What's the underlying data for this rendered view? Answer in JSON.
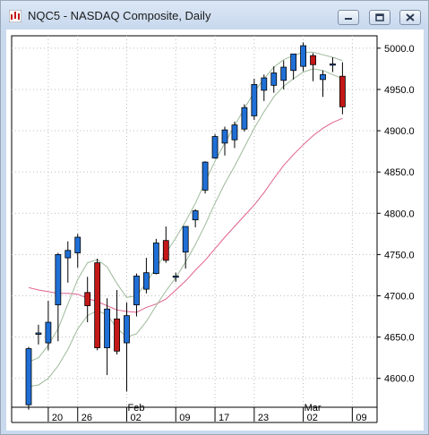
{
  "window": {
    "title": "NQC5 - NASDAQ Composite, Daily",
    "icon": "chart-app-icon",
    "buttons": [
      "minimize",
      "restore",
      "close"
    ]
  },
  "chart_data": {
    "type": "candlestick",
    "title": "NQC5 - NASDAQ Composite, Daily",
    "ylim": [
      4565,
      5015
    ],
    "y_ticks": [
      4600,
      4650,
      4700,
      4750,
      4800,
      4850,
      4900,
      4950,
      5000
    ],
    "y_tick_labels": [
      "4600.0",
      "4650.0",
      "4700.0",
      "4750.0",
      "4800.0",
      "4850.0",
      "4900.0",
      "4950.0",
      "5000.0"
    ],
    "x_ticks": [
      {
        "label": "20",
        "index": 2
      },
      {
        "label": "26",
        "index": 5
      },
      {
        "label": "02",
        "index": 10
      },
      {
        "label": "09",
        "index": 15
      },
      {
        "label": "17",
        "index": 19
      },
      {
        "label": "23",
        "index": 23
      },
      {
        "label": "02",
        "index": 28
      },
      {
        "label": "09",
        "index": 33
      }
    ],
    "month_labels": [
      {
        "label": "Feb",
        "index": 10
      },
      {
        "label": "Mar",
        "index": 28
      }
    ],
    "grid": true,
    "candles": [
      {
        "o": 4568,
        "h": 4638,
        "l": 4562,
        "c": 4636
      },
      {
        "o": 4655,
        "h": 4665,
        "l": 4641,
        "c": 4655
      },
      {
        "o": 4643,
        "h": 4694,
        "l": 4634,
        "c": 4668
      },
      {
        "o": 4689,
        "h": 4752,
        "l": 4645,
        "c": 4750
      },
      {
        "o": 4746,
        "h": 4766,
        "l": 4716,
        "c": 4755
      },
      {
        "o": 4752,
        "h": 4775,
        "l": 4734,
        "c": 4771
      },
      {
        "o": 4704,
        "h": 4723,
        "l": 4668,
        "c": 4688
      },
      {
        "o": 4740,
        "h": 4745,
        "l": 4634,
        "c": 4637
      },
      {
        "o": 4637,
        "h": 4697,
        "l": 4604,
        "c": 4684
      },
      {
        "o": 4672,
        "h": 4707,
        "l": 4629,
        "c": 4633
      },
      {
        "o": 4643,
        "h": 4692,
        "l": 4584,
        "c": 4676
      },
      {
        "o": 4689,
        "h": 4727,
        "l": 4675,
        "c": 4724
      },
      {
        "o": 4708,
        "h": 4746,
        "l": 4703,
        "c": 4728
      },
      {
        "o": 4727,
        "h": 4769,
        "l": 4726,
        "c": 4764
      },
      {
        "o": 4767,
        "h": 4784,
        "l": 4740,
        "c": 4743
      },
      {
        "o": 4723,
        "h": 4728,
        "l": 4717,
        "c": 4724
      },
      {
        "o": 4753,
        "h": 4784,
        "l": 4733,
        "c": 4784
      },
      {
        "o": 4792,
        "h": 4805,
        "l": 4783,
        "c": 4803
      },
      {
        "o": 4828,
        "h": 4863,
        "l": 4824,
        "c": 4862
      },
      {
        "o": 4867,
        "h": 4896,
        "l": 4866,
        "c": 4893
      },
      {
        "o": 4885,
        "h": 4905,
        "l": 4870,
        "c": 4901
      },
      {
        "o": 4889,
        "h": 4911,
        "l": 4879,
        "c": 4907
      },
      {
        "o": 4902,
        "h": 4932,
        "l": 4899,
        "c": 4928
      },
      {
        "o": 4918,
        "h": 4963,
        "l": 4913,
        "c": 4956
      },
      {
        "o": 4949,
        "h": 4968,
        "l": 4936,
        "c": 4964
      },
      {
        "o": 4955,
        "h": 4978,
        "l": 4946,
        "c": 4970
      },
      {
        "o": 4961,
        "h": 4985,
        "l": 4950,
        "c": 4977
      },
      {
        "o": 4973,
        "h": 4993,
        "l": 4962,
        "c": 4993
      },
      {
        "o": 4978,
        "h": 5007,
        "l": 4972,
        "c": 5003
      },
      {
        "o": 4991,
        "h": 4994,
        "l": 4960,
        "c": 4980
      },
      {
        "o": 4962,
        "h": 4973,
        "l": 4941,
        "c": 4968
      },
      {
        "o": 4981,
        "h": 4989,
        "l": 4971,
        "c": 4981
      },
      {
        "o": 4966,
        "h": 4983,
        "l": 4920,
        "c": 4929
      }
    ],
    "overlays": [
      {
        "color": "#e0608c",
        "values": [
          4710,
          4707,
          4705,
          4703,
          4703,
          4702,
          4697,
          4693,
          4688,
          4683,
          4681,
          4680,
          4686,
          4690,
          4696,
          4707,
          4718,
          4731,
          4743,
          4757,
          4771,
          4784,
          4797,
          4810,
          4825,
          4842,
          4858,
          4871,
          4883,
          4894,
          4903,
          4910,
          4915
        ]
      },
      {
        "color": "#9dba9a",
        "values": [
          4590,
          4592,
          4600,
          4615,
          4635,
          4660,
          4676,
          4682,
          4677,
          4661,
          4650,
          4654,
          4669,
          4688,
          4706,
          4722,
          4741,
          4762,
          4786,
          4812,
          4836,
          4857,
          4880,
          4903,
          4923,
          4941,
          4954,
          4963,
          4971,
          4975,
          4973,
          4968,
          4963
        ]
      },
      {
        "color": "#9dba9a",
        "values": [
          4620,
          4625,
          4640,
          4660,
          4690,
          4720,
          4740,
          4744,
          4735,
          4715,
          4698,
          4700,
          4716,
          4734,
          4752,
          4770,
          4790,
          4812,
          4838,
          4863,
          4885,
          4906,
          4927,
          4947,
          4963,
          4977,
          4986,
          4991,
          4995,
          4995,
          4992,
          4989,
          4985
        ]
      }
    ],
    "up_color": "#1f6fd6",
    "down_color": "#c41818"
  }
}
